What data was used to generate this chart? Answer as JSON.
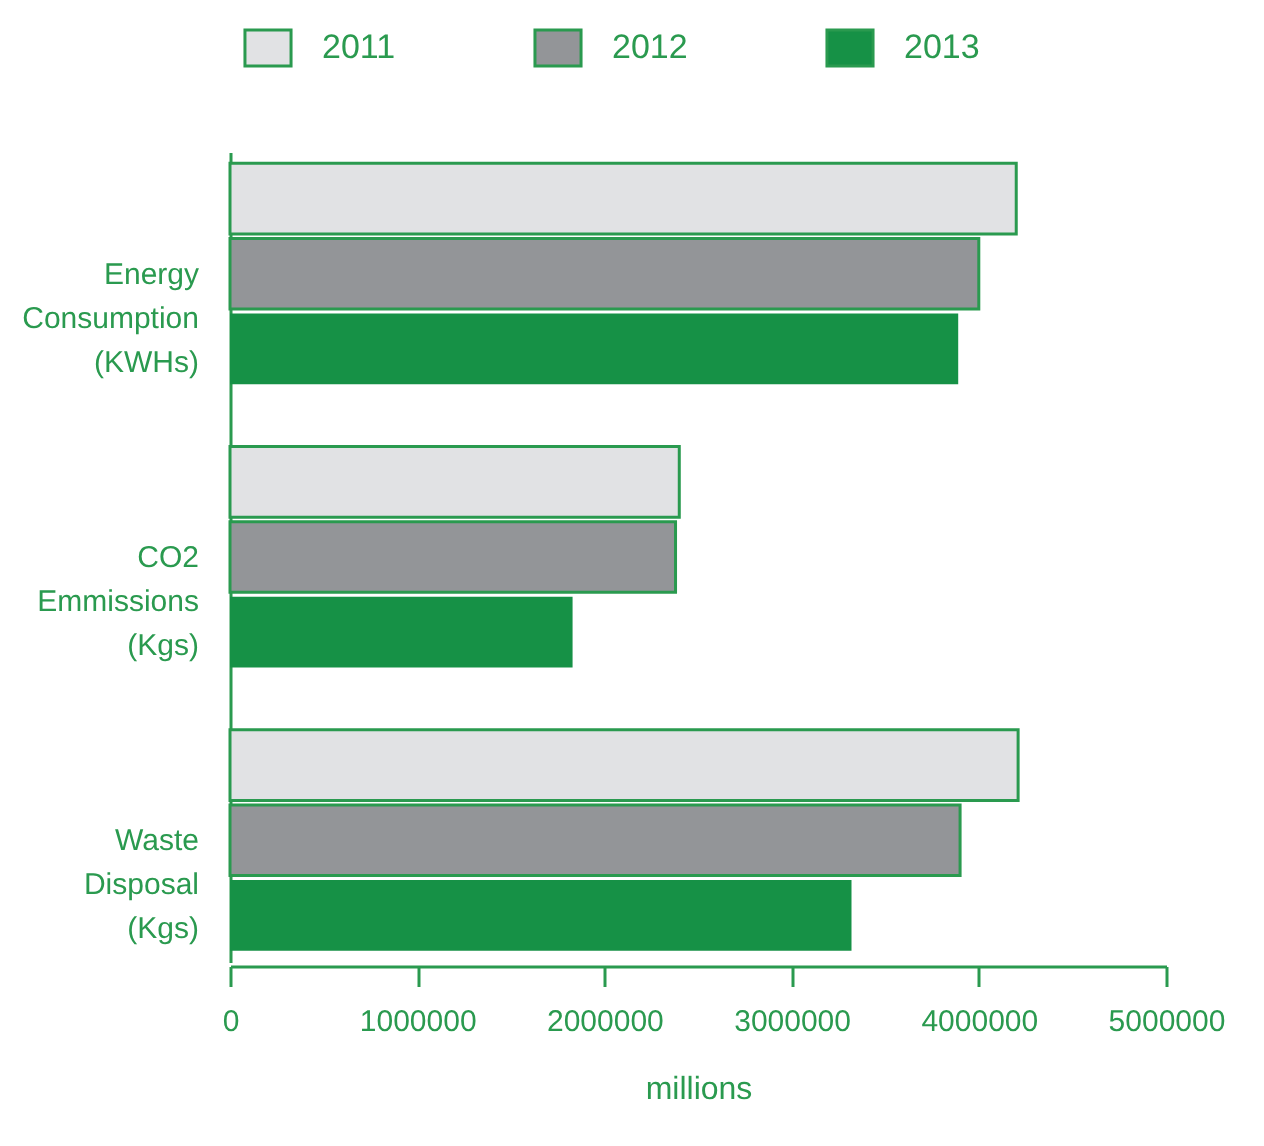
{
  "chart_data": {
    "type": "bar",
    "orientation": "horizontal",
    "xlabel": "millions",
    "categories": [
      "Energy\nConsumption\n(KWHs)",
      "CO2\nEmmissions\n(Kgs)",
      "Waste\nDisposal\n(Kgs)"
    ],
    "series": [
      {
        "name": "2011",
        "color": "#e1e2e4",
        "values": [
          4200000,
          2400000,
          4210000
        ]
      },
      {
        "name": "2012",
        "color": "#939598",
        "values": [
          4000000,
          2380000,
          3900000
        ]
      },
      {
        "name": "2013",
        "color": "#169146",
        "values": [
          3890000,
          1830000,
          3320000
        ]
      }
    ],
    "xlim": [
      0,
      5000000
    ],
    "xticks": [
      0,
      1000000,
      2000000,
      3000000,
      4000000,
      5000000
    ],
    "legend": "top"
  }
}
